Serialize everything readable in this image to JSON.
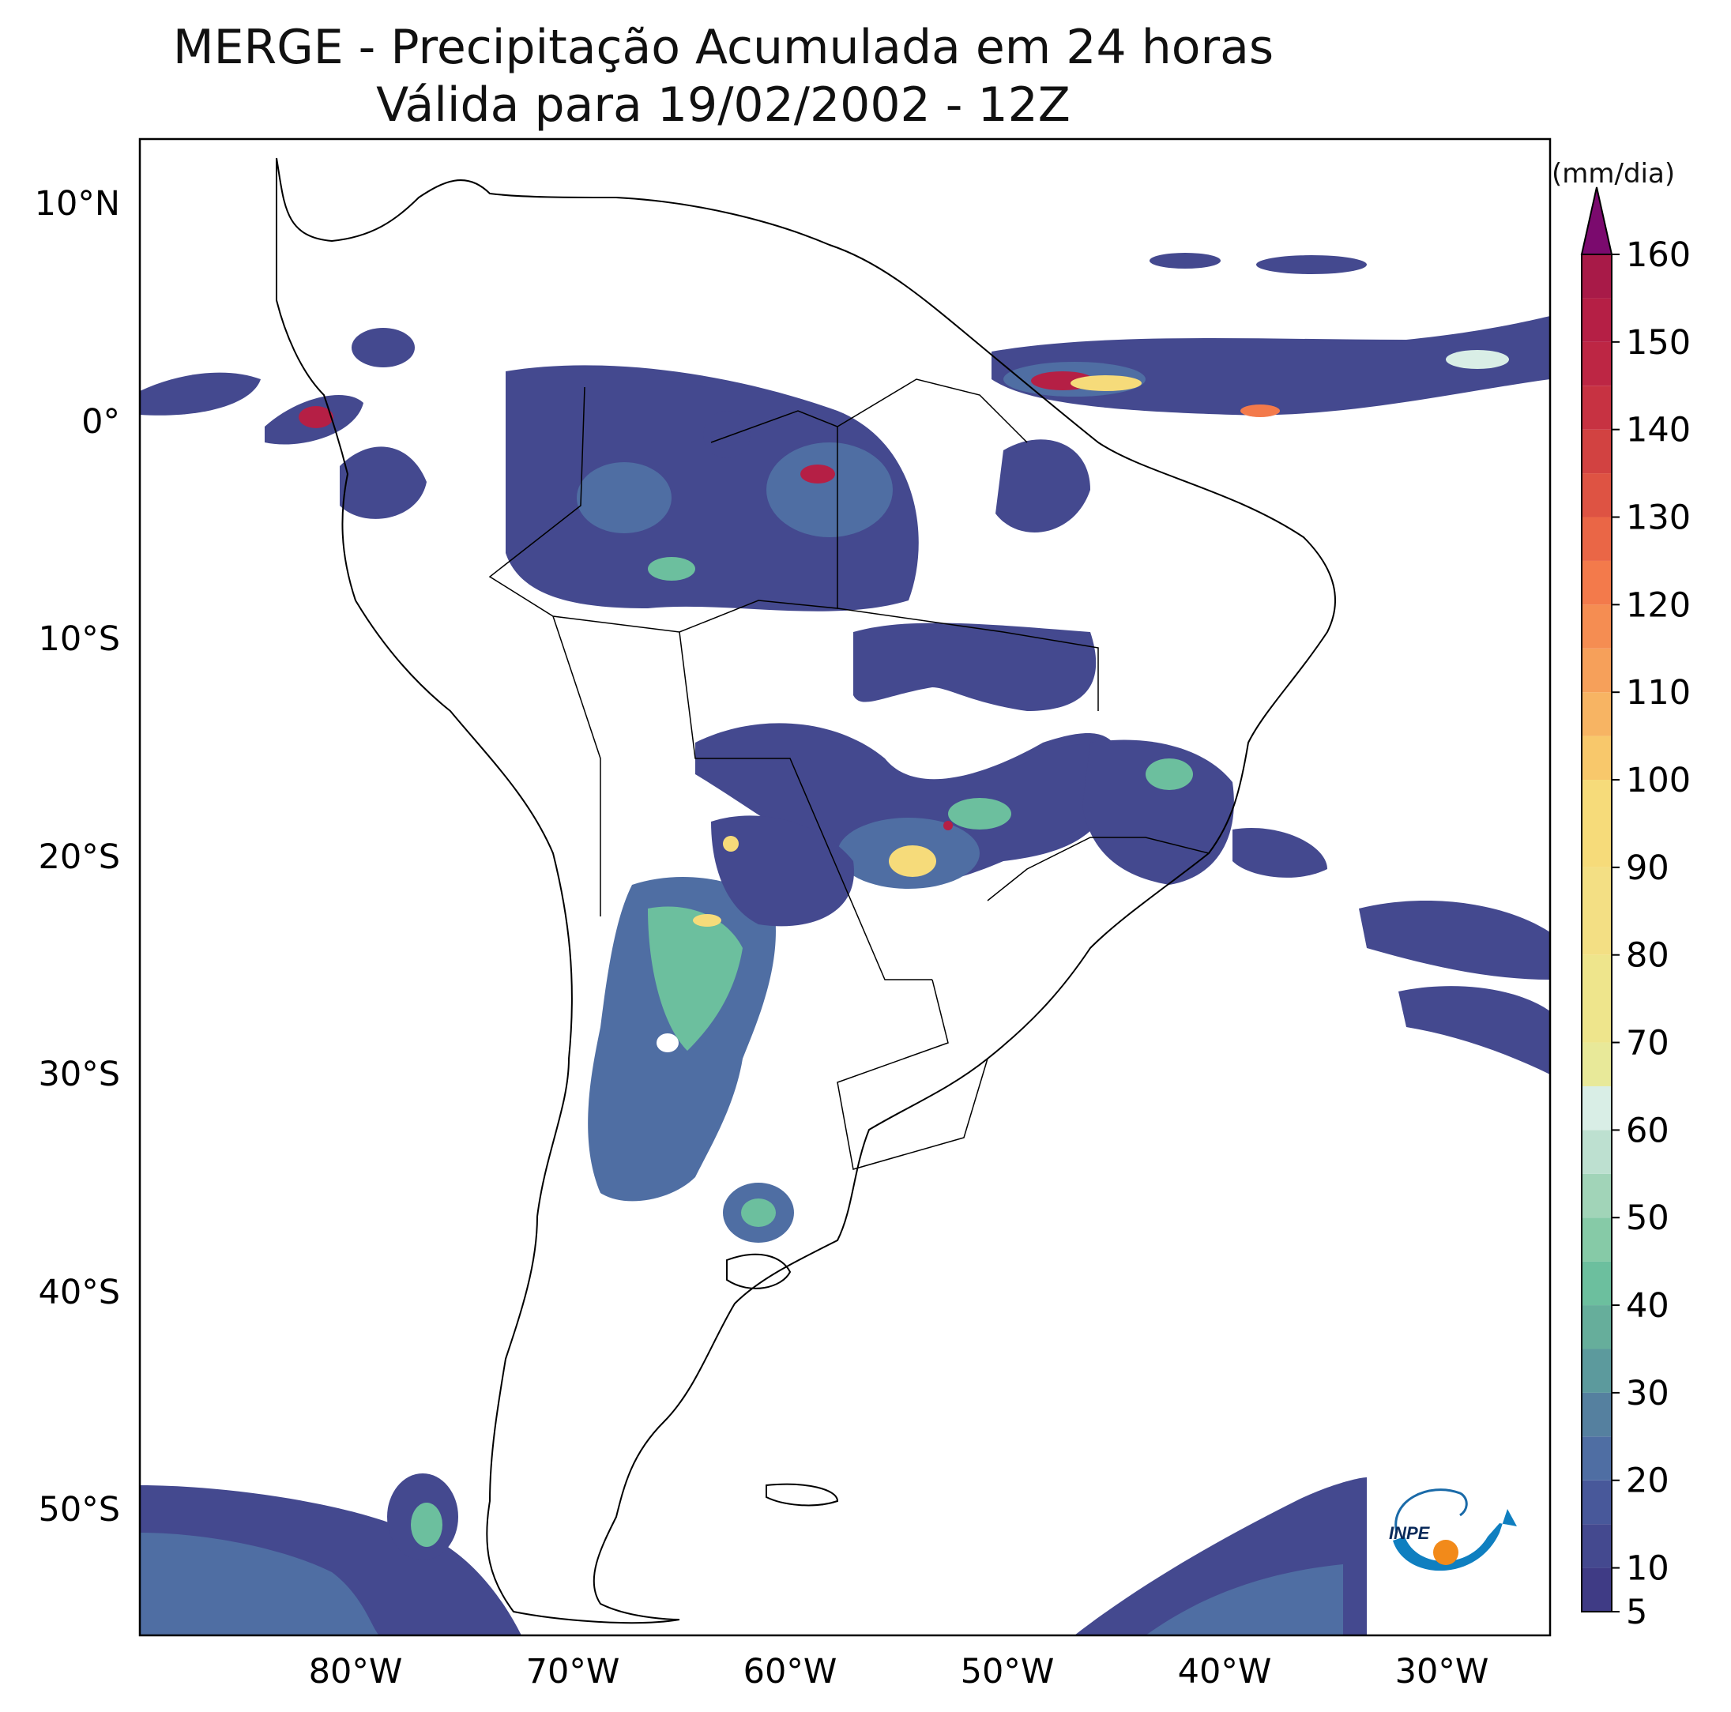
{
  "title": {
    "line1": "MERGE - Precipitação Acumulada em 24 horas",
    "line2": "Válida para 19/02/2002 - 12Z"
  },
  "axes": {
    "lat_ticks": [
      "10°N",
      "0°",
      "10°S",
      "20°S",
      "30°S",
      "40°S",
      "50°S"
    ],
    "lon_ticks": [
      "80°W",
      "70°W",
      "60°W",
      "50°W",
      "40°W",
      "30°W"
    ],
    "lat_range": [
      -56,
      13
    ],
    "lon_range": [
      -90,
      -25
    ]
  },
  "colorbar": {
    "unit": "(mm/dia)",
    "ticks": [
      "5",
      "10",
      "20",
      "30",
      "40",
      "50",
      "60",
      "70",
      "80",
      "90",
      "100",
      "110",
      "120",
      "130",
      "140",
      "150",
      "160"
    ],
    "extend": "max"
  },
  "logo": {
    "text": "INPE"
  },
  "colors": {
    "low": "#44498f",
    "mid": "#4f6ea3",
    "teal": "#6cbf9e",
    "light": "#d9eee6",
    "yellow": "#f6db7a",
    "orange": "#f37a4b",
    "red": "#b51f45",
    "max": "#7b0a6e"
  }
}
